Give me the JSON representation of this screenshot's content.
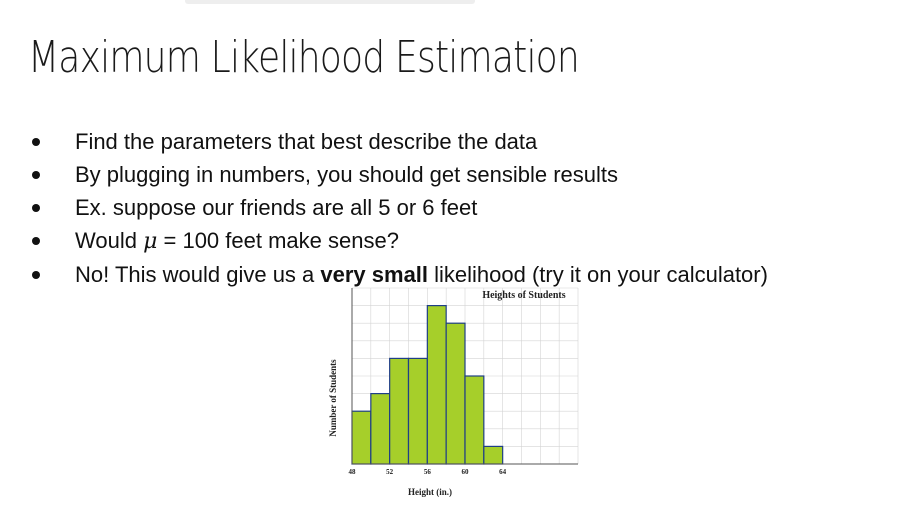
{
  "slide": {
    "title": "Maximum Likelihood Estimation",
    "bullets": [
      {
        "text": "Find the parameters that best describe the data"
      },
      {
        "text": "By plugging in numbers, you should get sensible results"
      },
      {
        "text": "Ex. suppose our friends are all 5 or 6 feet"
      },
      {
        "before": "Would ",
        "symbol": "μ",
        "after": " = 100 feet make sense?"
      },
      {
        "before": "No! This would give us a ",
        "bold": "very small",
        "after": " likelihood (try it on your calculator)"
      }
    ]
  },
  "chart_data": {
    "type": "bar",
    "title": "Heights of Students",
    "xlabel": "Height (in.)",
    "ylabel": "Number of Students",
    "bin_edges": [
      48,
      50,
      52,
      54,
      56,
      58,
      60,
      62,
      64
    ],
    "values": [
      3,
      4,
      6,
      6,
      9,
      8,
      5,
      1
    ],
    "xticks": [
      "48",
      "52",
      "56",
      "60",
      "64"
    ],
    "xlim": [
      48,
      72
    ],
    "ylim": [
      0,
      10
    ],
    "grid": true,
    "bar_color": "#a6cf2a",
    "bar_edge_color": "#1f3f86"
  }
}
